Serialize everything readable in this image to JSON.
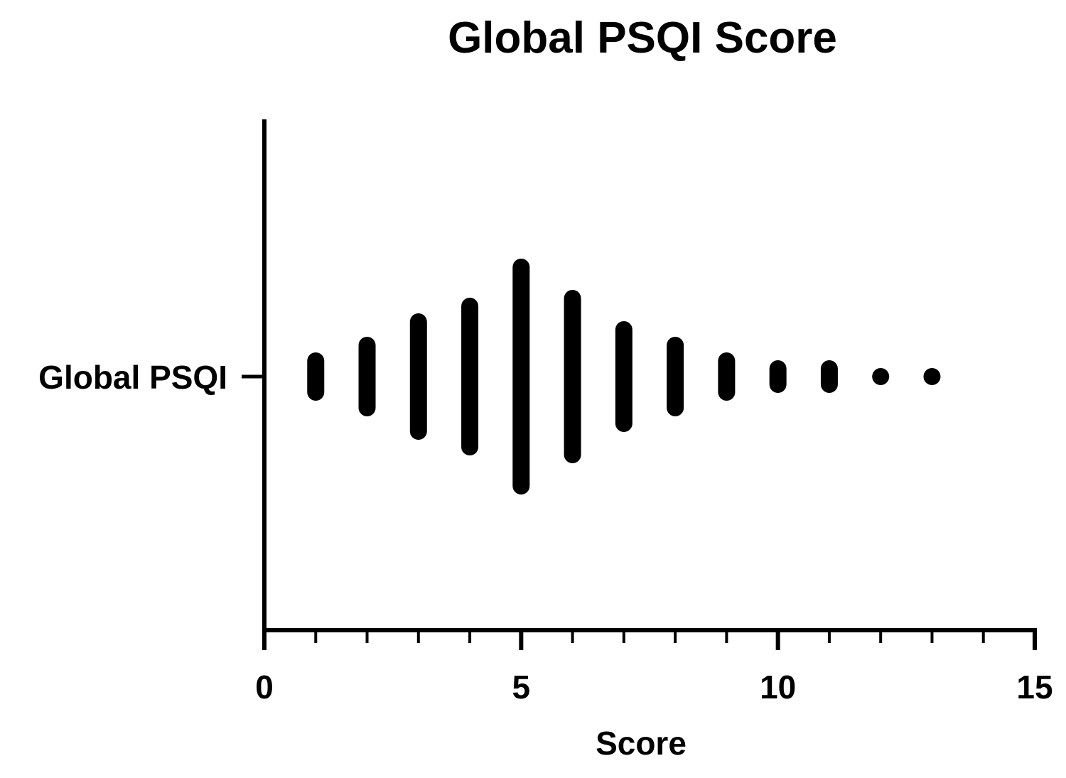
{
  "chart_data": {
    "type": "scatter",
    "title": "Global PSQI Score",
    "xlabel": "Score",
    "ylabel": "",
    "category": "Global PSQI",
    "xlim": [
      0,
      15
    ],
    "x_major_ticks": [
      0,
      5,
      10,
      15
    ],
    "x_minor_step": 1,
    "grid": false,
    "mark_color": "#000000",
    "points": [
      {
        "x": 1,
        "count": 3
      },
      {
        "x": 2,
        "count": 5
      },
      {
        "x": 3,
        "count": 8
      },
      {
        "x": 4,
        "count": 10
      },
      {
        "x": 5,
        "count": 15
      },
      {
        "x": 6,
        "count": 11
      },
      {
        "x": 7,
        "count": 7
      },
      {
        "x": 8,
        "count": 5
      },
      {
        "x": 9,
        "count": 3
      },
      {
        "x": 10,
        "count": 2
      },
      {
        "x": 11,
        "count": 2
      },
      {
        "x": 12,
        "count": 1
      },
      {
        "x": 13,
        "count": 1
      }
    ]
  }
}
